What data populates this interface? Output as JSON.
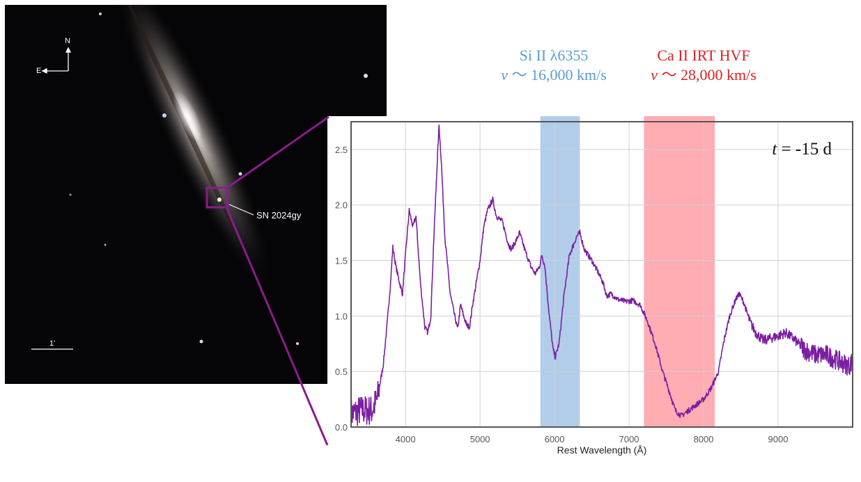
{
  "image_panel": {
    "compass_north": "N",
    "compass_east": "E",
    "scale_bar_label": "1'",
    "target_label": "SN 2024gy",
    "accent_color": "#8b1a8f"
  },
  "chart_data": {
    "type": "line",
    "title": "",
    "annotation": {
      "italic": "t",
      "text": " = -15 d"
    },
    "xlabel": "Rest Wavelength (Å)",
    "ylabel": "",
    "xlim": [
      3270,
      10000
    ],
    "ylim": [
      0,
      2.75
    ],
    "grid": true,
    "xticks": [
      4000,
      5000,
      6000,
      7000,
      8000,
      9000
    ],
    "xtick_labels": [
      "4000",
      "5000",
      "6000",
      "7000",
      "8000",
      "9000"
    ],
    "yticks": [
      0.0,
      0.5,
      1.0,
      1.5,
      2.0,
      2.5
    ],
    "ytick_labels": [
      "0.0",
      "0.5",
      "1.0",
      "1.5",
      "2.0",
      "2.5"
    ],
    "series": [
      {
        "name": "SN 2024gy spectrum",
        "color": "#7b1fa2",
        "x": [
          3270,
          3400,
          3550,
          3620,
          3700,
          3750,
          3800,
          3830,
          3870,
          3920,
          3960,
          4000,
          4050,
          4100,
          4140,
          4200,
          4260,
          4300,
          4340,
          4380,
          4420,
          4450,
          4480,
          4530,
          4600,
          4660,
          4700,
          4740,
          4780,
          4820,
          4860,
          4900,
          4950,
          5000,
          5050,
          5100,
          5170,
          5220,
          5300,
          5380,
          5420,
          5500,
          5530,
          5600,
          5680,
          5740,
          5800,
          5830,
          5870,
          5930,
          5980,
          6010,
          6060,
          6130,
          6200,
          6300,
          6340,
          6400,
          6500,
          6580,
          6650,
          6700,
          6760,
          6850,
          6950,
          7050,
          7150,
          7250,
          7350,
          7450,
          7550,
          7620,
          7700,
          7800,
          7900,
          8000,
          8100,
          8200,
          8280,
          8350,
          8430,
          8480,
          8540,
          8620,
          8700,
          8800,
          8900,
          9000,
          9100,
          9200,
          9350,
          9500,
          9650,
          9800,
          9950,
          10000
        ],
        "y": [
          0.12,
          0.15,
          0.15,
          0.25,
          0.55,
          0.9,
          1.3,
          1.62,
          1.45,
          1.3,
          1.2,
          1.55,
          1.95,
          1.8,
          1.9,
          1.3,
          0.9,
          0.85,
          1.0,
          1.7,
          2.3,
          2.72,
          2.4,
          1.7,
          1.2,
          1.0,
          0.88,
          1.1,
          1.0,
          0.92,
          0.9,
          1.1,
          1.3,
          1.5,
          1.8,
          1.95,
          2.05,
          1.9,
          1.85,
          1.65,
          1.6,
          1.7,
          1.75,
          1.6,
          1.45,
          1.38,
          1.45,
          1.55,
          1.45,
          1.0,
          0.7,
          0.63,
          0.75,
          1.2,
          1.55,
          1.72,
          1.75,
          1.6,
          1.5,
          1.4,
          1.3,
          1.18,
          1.2,
          1.15,
          1.13,
          1.14,
          1.1,
          0.95,
          0.75,
          0.5,
          0.3,
          0.15,
          0.1,
          0.15,
          0.2,
          0.25,
          0.35,
          0.5,
          0.8,
          1.0,
          1.15,
          1.2,
          1.12,
          0.95,
          0.85,
          0.78,
          0.8,
          0.82,
          0.85,
          0.8,
          0.7,
          0.65,
          0.65,
          0.6,
          0.55,
          0.6
        ]
      }
    ],
    "bands": [
      {
        "name": "Si II",
        "line": "Si II λ6355",
        "velocity_prefix": "v",
        "velocity": " 〜 16,000 km/s",
        "range": [
          5810,
          6340
        ],
        "color": "#a8c8e8",
        "text_color": "#5b9bd5"
      },
      {
        "name": "Ca II IRT HVF",
        "line": "Ca II IRT HVF",
        "velocity_prefix": "v",
        "velocity": " 〜 28,000 km/s",
        "range": [
          7200,
          8150
        ],
        "color": "#ffa3aa",
        "text_color": "#e02020"
      }
    ]
  }
}
